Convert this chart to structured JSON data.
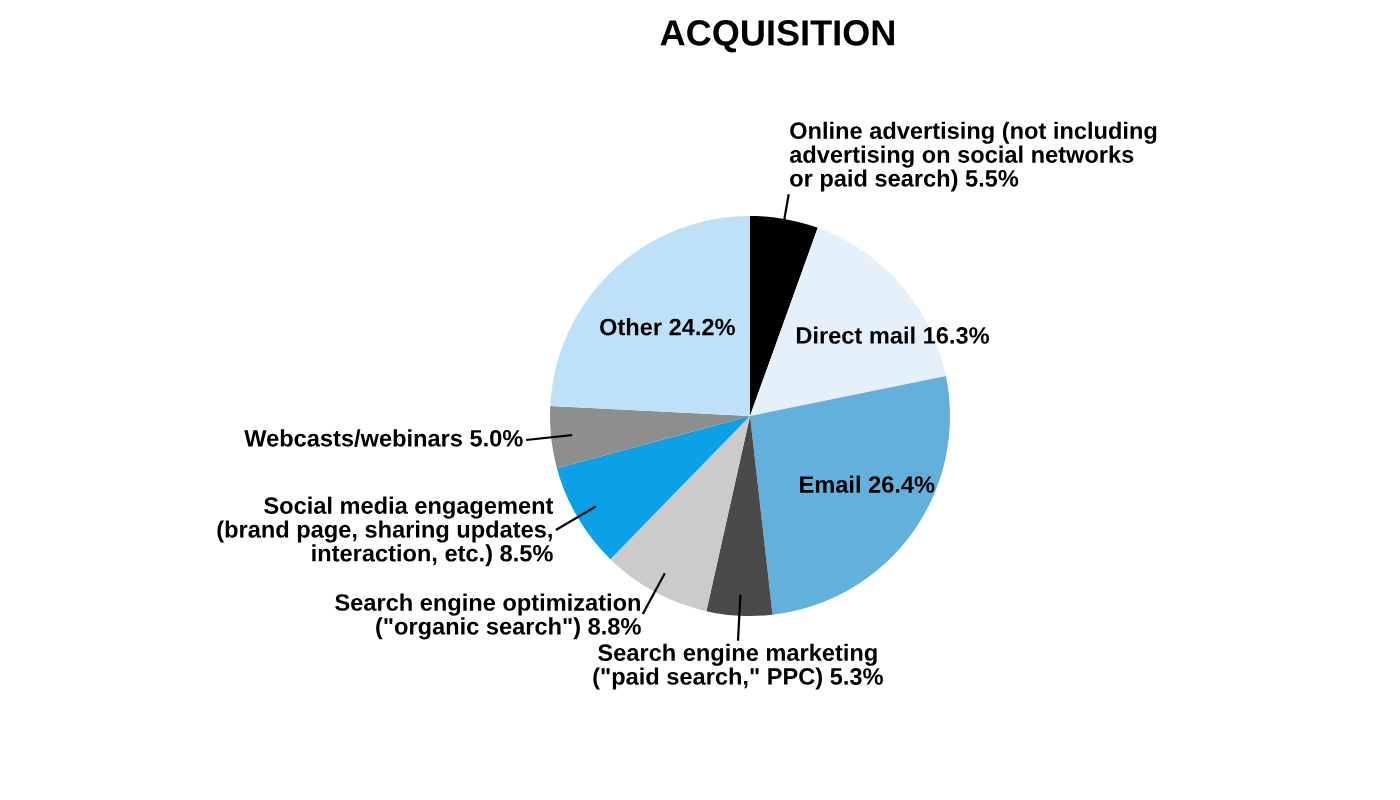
{
  "chart_data": {
    "type": "pie",
    "title": "ACQUISITION",
    "categories": [
      "Online advertising (not including\nadvertising on social networks\nor paid search)",
      "Direct mail",
      "Email",
      "Search engine marketing\n(\"paid search,\" PPC)",
      "Search engine optimization\n(\"organic search\")",
      "Social media engagement\n(brand page, sharing updates,\ninteraction, etc.)",
      "Webcasts/webinars",
      "Other"
    ],
    "values": [
      5.5,
      16.3,
      26.4,
      5.3,
      8.8,
      8.5,
      5.0,
      24.2
    ],
    "value_labels": [
      "5.5%",
      "16.3%",
      "26.4%",
      "5.3%",
      "8.8%",
      "8.5%",
      "5.0%",
      "24.2%"
    ],
    "colors": [
      "#000000",
      "#e4f1fb",
      "#62b1dc",
      "#4a4a4a",
      "#cbcbcb",
      "#0aa1e6",
      "#8e8e8e",
      "#bfe1f7"
    ],
    "legend": false
  }
}
